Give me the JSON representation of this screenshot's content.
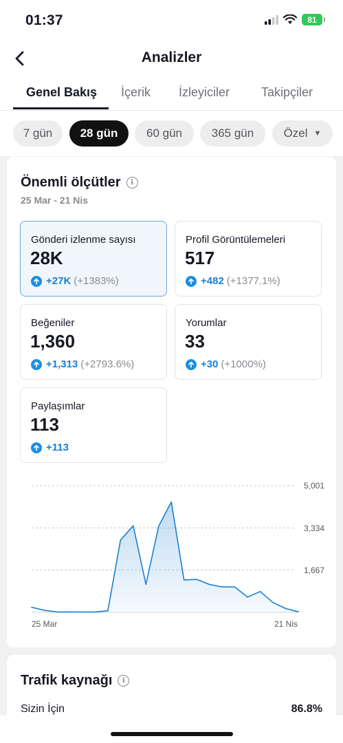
{
  "status": {
    "time": "01:37",
    "battery": "81"
  },
  "nav": {
    "title": "Analizler"
  },
  "tabs": [
    "Genel Bakış",
    "İçerik",
    "İzleyiciler",
    "Takipçiler"
  ],
  "ranges": [
    "7 gün",
    "28 gün",
    "60 gün",
    "365 gün",
    "Özel"
  ],
  "selected_range": "28 gün",
  "key_metrics": {
    "title": "Önemli ölçütler",
    "date_range": "25 Mar - 21 Nis",
    "items": [
      {
        "label": "Gönderi izlenme sayısı",
        "value": "28K",
        "delta": "+27K",
        "pct": "(+1383%)"
      },
      {
        "label": "Profil Görüntülemeleri",
        "value": "517",
        "delta": "+482",
        "pct": "(+1377.1%)"
      },
      {
        "label": "Beğeniler",
        "value": "1,360",
        "delta": "+1,313",
        "pct": "(+2793.6%)"
      },
      {
        "label": "Yorumlar",
        "value": "33",
        "delta": "+30",
        "pct": "(+1000%)"
      },
      {
        "label": "Paylaşımlar",
        "value": "113",
        "delta": "+113",
        "pct": ""
      }
    ]
  },
  "chart_data": {
    "type": "area",
    "title": "",
    "series_label": "Gönderi izlenme sayısı",
    "x_labels": [
      "25 Mar",
      "21 Nis"
    ],
    "y_ticks": [
      "5,001",
      "3,334",
      "1,667"
    ],
    "ylim": [
      0,
      5001
    ],
    "values": [
      200,
      80,
      10,
      15,
      10,
      10,
      60,
      2850,
      3420,
      1100,
      3400,
      4360,
      1280,
      1300,
      1100,
      1000,
      1000,
      600,
      820,
      390,
      150,
      20
    ],
    "grid": true,
    "color": "#1a7fd4"
  },
  "traffic": {
    "title": "Trafik kaynağı",
    "row_label": "Sizin İçin",
    "row_value": "86.8%"
  }
}
